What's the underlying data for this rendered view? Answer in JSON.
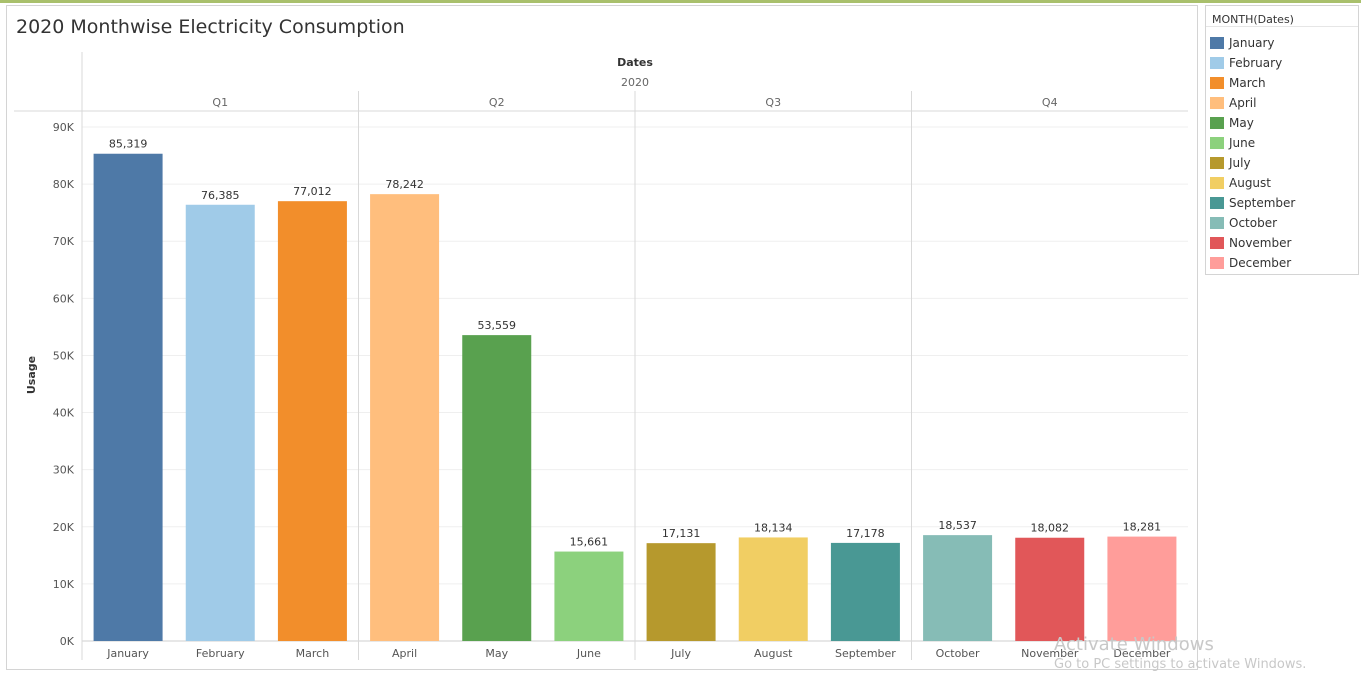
{
  "chart_data": {
    "type": "bar",
    "title": "2020 Monthwise Electricity Consumption",
    "column_header": "Dates",
    "year": "2020",
    "ylabel": "Usage",
    "ylim": [
      0,
      90000
    ],
    "yticks": [
      "0K",
      "10K",
      "20K",
      "30K",
      "40K",
      "50K",
      "60K",
      "70K",
      "80K",
      "90K"
    ],
    "quarters": [
      "Q1",
      "Q2",
      "Q3",
      "Q4"
    ],
    "categories": [
      "January",
      "February",
      "March",
      "April",
      "May",
      "June",
      "July",
      "August",
      "September",
      "October",
      "November",
      "December"
    ],
    "values": [
      85319,
      76385,
      77012,
      78242,
      53559,
      15661,
      17131,
      18134,
      17178,
      18537,
      18082,
      18281
    ],
    "value_labels": [
      "85,319",
      "76,385",
      "77,012",
      "78,242",
      "53,559",
      "15,661",
      "17,131",
      "18,134",
      "17,178",
      "18,537",
      "18,082",
      "18,281"
    ],
    "colors": [
      "#4e79a7",
      "#a0cbe8",
      "#f28e2b",
      "#ffbe7d",
      "#59a14f",
      "#8cd17d",
      "#b6992d",
      "#f1ce63",
      "#499894",
      "#86bcb6",
      "#e15759",
      "#ff9d9a"
    ],
    "grid": true,
    "legend": {
      "title": "MONTH(Dates)",
      "placement": "right",
      "entries": [
        "January",
        "February",
        "March",
        "April",
        "May",
        "June",
        "July",
        "August",
        "September",
        "October",
        "November",
        "December"
      ]
    }
  },
  "watermark": {
    "line1": "Activate Windows",
    "line2": "Go to PC settings to activate Windows."
  }
}
